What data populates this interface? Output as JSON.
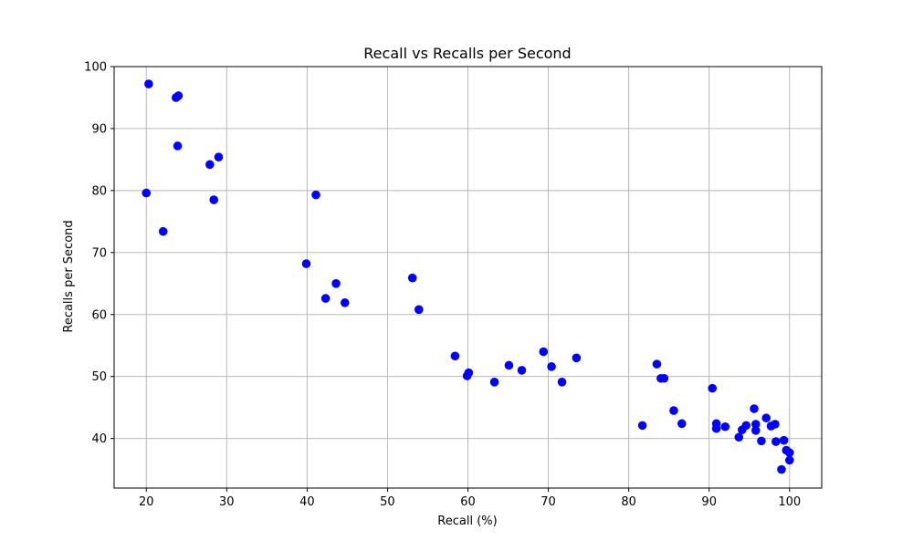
{
  "chart_data": {
    "type": "scatter",
    "title": "Recall vs Recalls per Second",
    "xlabel": "Recall (%)",
    "ylabel": "Recalls per Second",
    "xlim": [
      16,
      104
    ],
    "ylim": [
      32,
      100
    ],
    "xticks": [
      20,
      30,
      40,
      50,
      60,
      70,
      80,
      90,
      100
    ],
    "yticks": [
      40,
      50,
      60,
      70,
      80,
      90,
      100
    ],
    "grid": true,
    "marker_color": "#0000ff",
    "points": [
      {
        "x": 20.3,
        "y": 97.2
      },
      {
        "x": 23.7,
        "y": 95.0
      },
      {
        "x": 24.0,
        "y": 95.3
      },
      {
        "x": 23.9,
        "y": 87.2
      },
      {
        "x": 27.9,
        "y": 84.2
      },
      {
        "x": 29.0,
        "y": 85.4
      },
      {
        "x": 20.0,
        "y": 79.6
      },
      {
        "x": 28.4,
        "y": 78.5
      },
      {
        "x": 22.1,
        "y": 73.4
      },
      {
        "x": 41.1,
        "y": 79.3
      },
      {
        "x": 39.9,
        "y": 68.2
      },
      {
        "x": 43.6,
        "y": 65.0
      },
      {
        "x": 42.3,
        "y": 62.6
      },
      {
        "x": 44.7,
        "y": 61.9
      },
      {
        "x": 53.1,
        "y": 65.9
      },
      {
        "x": 53.9,
        "y": 60.8
      },
      {
        "x": 58.4,
        "y": 53.3
      },
      {
        "x": 60.1,
        "y": 50.6
      },
      {
        "x": 59.9,
        "y": 50.1
      },
      {
        "x": 63.3,
        "y": 49.1
      },
      {
        "x": 65.1,
        "y": 51.8
      },
      {
        "x": 66.7,
        "y": 51.0
      },
      {
        "x": 69.4,
        "y": 54.0
      },
      {
        "x": 70.4,
        "y": 51.6
      },
      {
        "x": 71.7,
        "y": 49.1
      },
      {
        "x": 73.5,
        "y": 53.0
      },
      {
        "x": 81.7,
        "y": 42.1
      },
      {
        "x": 83.5,
        "y": 52.0
      },
      {
        "x": 84.0,
        "y": 49.7
      },
      {
        "x": 84.4,
        "y": 49.7
      },
      {
        "x": 85.6,
        "y": 44.5
      },
      {
        "x": 86.6,
        "y": 42.4
      },
      {
        "x": 90.4,
        "y": 48.1
      },
      {
        "x": 90.9,
        "y": 42.4
      },
      {
        "x": 90.9,
        "y": 41.6
      },
      {
        "x": 92.0,
        "y": 41.9
      },
      {
        "x": 93.7,
        "y": 40.2
      },
      {
        "x": 94.1,
        "y": 41.4
      },
      {
        "x": 94.6,
        "y": 42.1
      },
      {
        "x": 95.6,
        "y": 44.8
      },
      {
        "x": 95.8,
        "y": 42.3
      },
      {
        "x": 95.8,
        "y": 41.3
      },
      {
        "x": 96.5,
        "y": 39.6
      },
      {
        "x": 97.1,
        "y": 43.3
      },
      {
        "x": 97.7,
        "y": 42.0
      },
      {
        "x": 98.2,
        "y": 42.3
      },
      {
        "x": 98.3,
        "y": 39.5
      },
      {
        "x": 99.0,
        "y": 35.0
      },
      {
        "x": 99.3,
        "y": 39.7
      },
      {
        "x": 99.6,
        "y": 38.1
      },
      {
        "x": 100.0,
        "y": 37.7
      },
      {
        "x": 100.0,
        "y": 36.5
      }
    ]
  }
}
